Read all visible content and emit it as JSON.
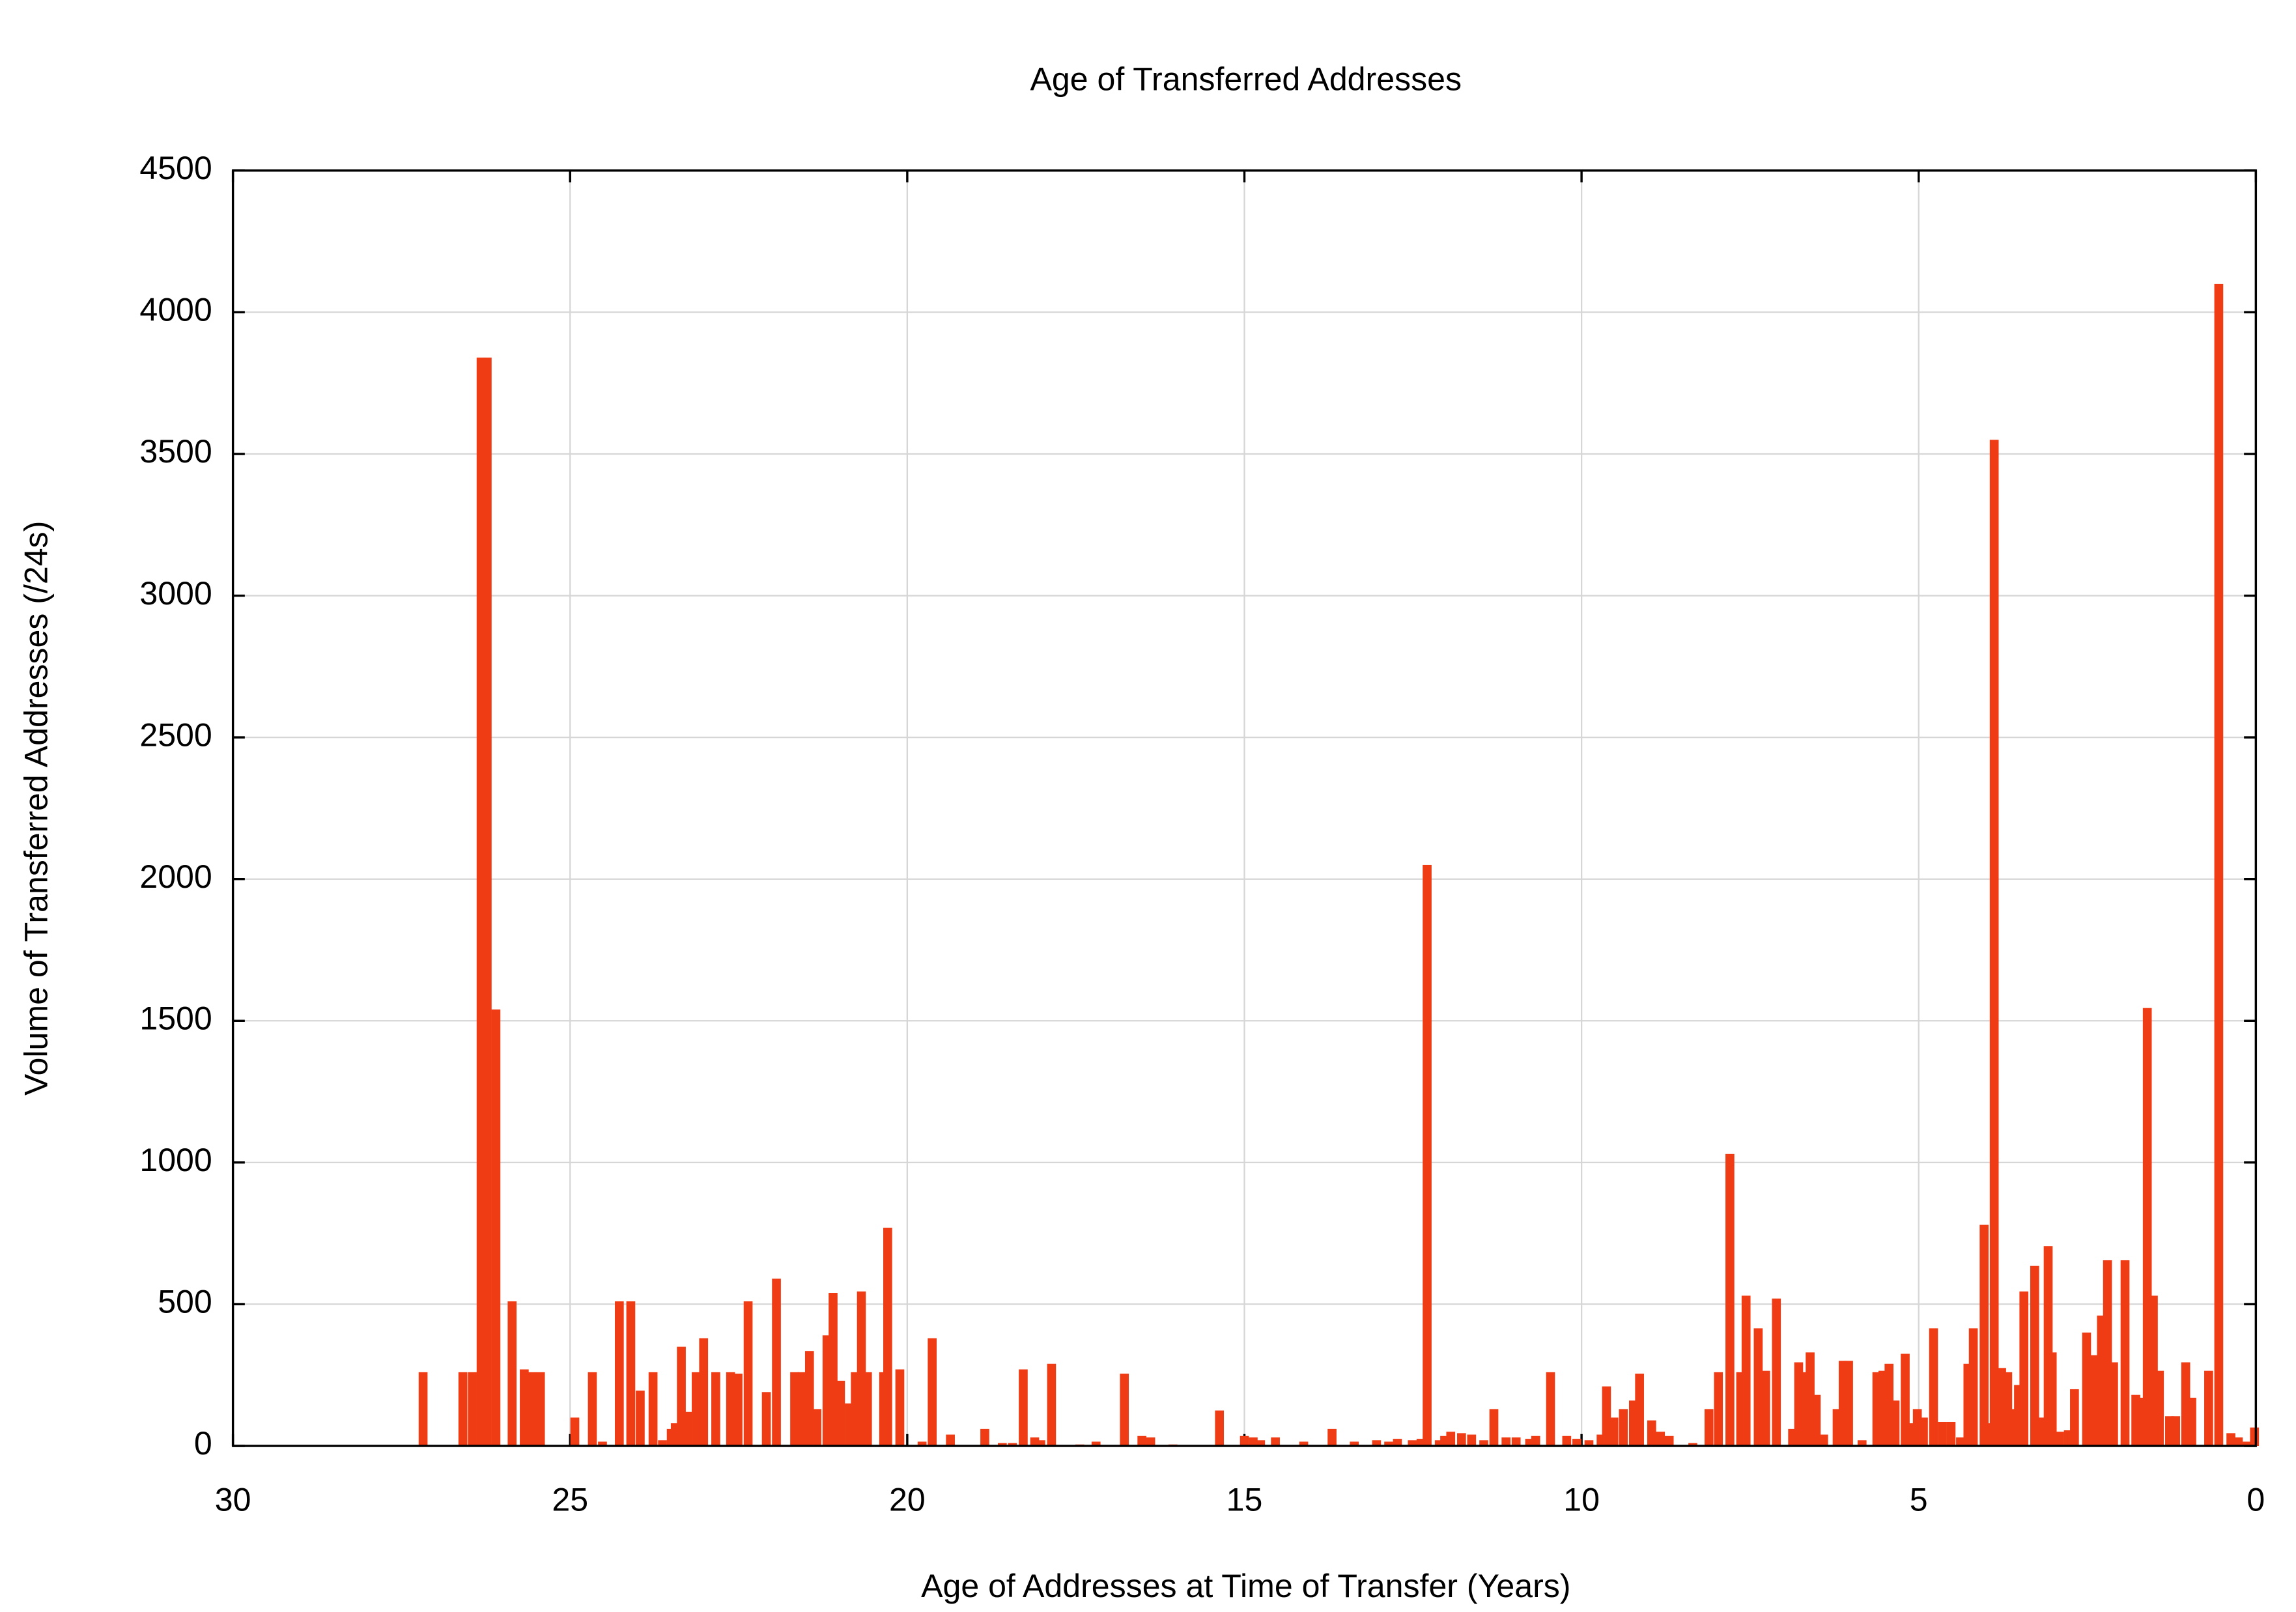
{
  "chart_data": {
    "type": "bar",
    "title": "Age of Transferred Addresses",
    "xlabel": "Age of Addresses at Time of Transfer (Years)",
    "ylabel": "Volume of Transferred Addresses (/24s)",
    "color": "#f03c14",
    "grid": true,
    "xlim": [
      30,
      0
    ],
    "xticks": [
      30,
      25,
      20,
      15,
      10,
      5,
      0
    ],
    "ylim": [
      0,
      4500
    ],
    "yticks": [
      0,
      500,
      1000,
      1500,
      2000,
      2500,
      3000,
      3500,
      4000,
      4500
    ],
    "x": [
      27.18,
      26.59,
      26.45,
      26.32,
      26.23,
      26.1,
      25.86,
      25.68,
      25.57,
      25.44,
      24.93,
      24.67,
      24.52,
      24.27,
      24.1,
      23.96,
      23.77,
      23.63,
      23.5,
      23.44,
      23.35,
      23.26,
      23.13,
      23.02,
      22.84,
      22.62,
      22.51,
      22.36,
      22.09,
      21.94,
      21.67,
      21.56,
      21.45,
      21.34,
      21.19,
      21.1,
      20.99,
      20.86,
      20.77,
      20.68,
      20.59,
      20.35,
      20.29,
      20.11,
      19.78,
      19.63,
      19.36,
      18.85,
      18.59,
      18.44,
      18.28,
      18.11,
      18.02,
      17.86,
      17.44,
      17.2,
      16.78,
      16.52,
      16.39,
      16.06,
      15.37,
      15.0,
      14.87,
      14.76,
      14.54,
      14.12,
      13.7,
      13.37,
      13.04,
      12.86,
      12.73,
      12.51,
      12.38,
      12.29,
      12.11,
      12.03,
      11.94,
      11.78,
      11.63,
      11.45,
      11.3,
      11.12,
      10.97,
      10.77,
      10.68,
      10.46,
      10.22,
      10.07,
      9.89,
      9.71,
      9.63,
      9.52,
      9.38,
      9.23,
      9.14,
      8.96,
      8.83,
      8.7,
      8.35,
      8.11,
      7.97,
      7.8,
      7.64,
      7.56,
      7.38,
      7.27,
      7.11,
      6.87,
      6.78,
      6.7,
      6.61,
      6.52,
      6.41,
      6.21,
      6.12,
      6.04,
      5.84,
      5.62,
      5.53,
      5.44,
      5.35,
      5.2,
      5.11,
      5.02,
      4.93,
      4.78,
      4.65,
      4.52,
      4.38,
      4.27,
      4.19,
      4.03,
      3.94,
      3.88,
      3.77,
      3.68,
      3.59,
      3.52,
      3.44,
      3.28,
      3.17,
      3.08,
      3.02,
      2.91,
      2.78,
      2.69,
      2.51,
      2.4,
      2.29,
      2.2,
      2.11,
      1.94,
      1.78,
      1.7,
      1.61,
      1.52,
      1.43,
      1.28,
      1.19,
      1.04,
      0.95,
      0.7,
      0.55,
      0.37,
      0.26,
      0.13,
      0.02
    ],
    "values": [
      260,
      260,
      260,
      3840,
      3840,
      1540,
      510,
      270,
      260,
      260,
      100,
      260,
      15,
      510,
      510,
      195,
      260,
      20,
      60,
      80,
      350,
      120,
      260,
      380,
      260,
      260,
      255,
      510,
      190,
      590,
      260,
      260,
      335,
      130,
      390,
      540,
      230,
      150,
      260,
      545,
      260,
      260,
      770,
      270,
      15,
      380,
      40,
      60,
      10,
      10,
      270,
      30,
      20,
      290,
      5,
      15,
      255,
      35,
      30,
      5,
      125,
      35,
      30,
      20,
      30,
      15,
      60,
      15,
      20,
      15,
      25,
      20,
      25,
      2050,
      20,
      35,
      50,
      45,
      40,
      20,
      130,
      30,
      30,
      25,
      35,
      260,
      35,
      25,
      20,
      40,
      210,
      100,
      130,
      160,
      255,
      90,
      50,
      35,
      10,
      130,
      260,
      1030,
      260,
      530,
      415,
      265,
      520,
      60,
      295,
      260,
      330,
      180,
      40,
      130,
      300,
      300,
      20,
      260,
      265,
      290,
      160,
      325,
      80,
      130,
      100,
      415,
      85,
      85,
      30,
      290,
      415,
      780,
      80,
      3550,
      275,
      260,
      130,
      215,
      545,
      635,
      100,
      705,
      330,
      50,
      55,
      200,
      400,
      320,
      460,
      655,
      295,
      655,
      180,
      170,
      1545,
      530,
      265,
      105,
      105,
      295,
      170,
      265,
      4100,
      45,
      30,
      15,
      65
    ]
  }
}
